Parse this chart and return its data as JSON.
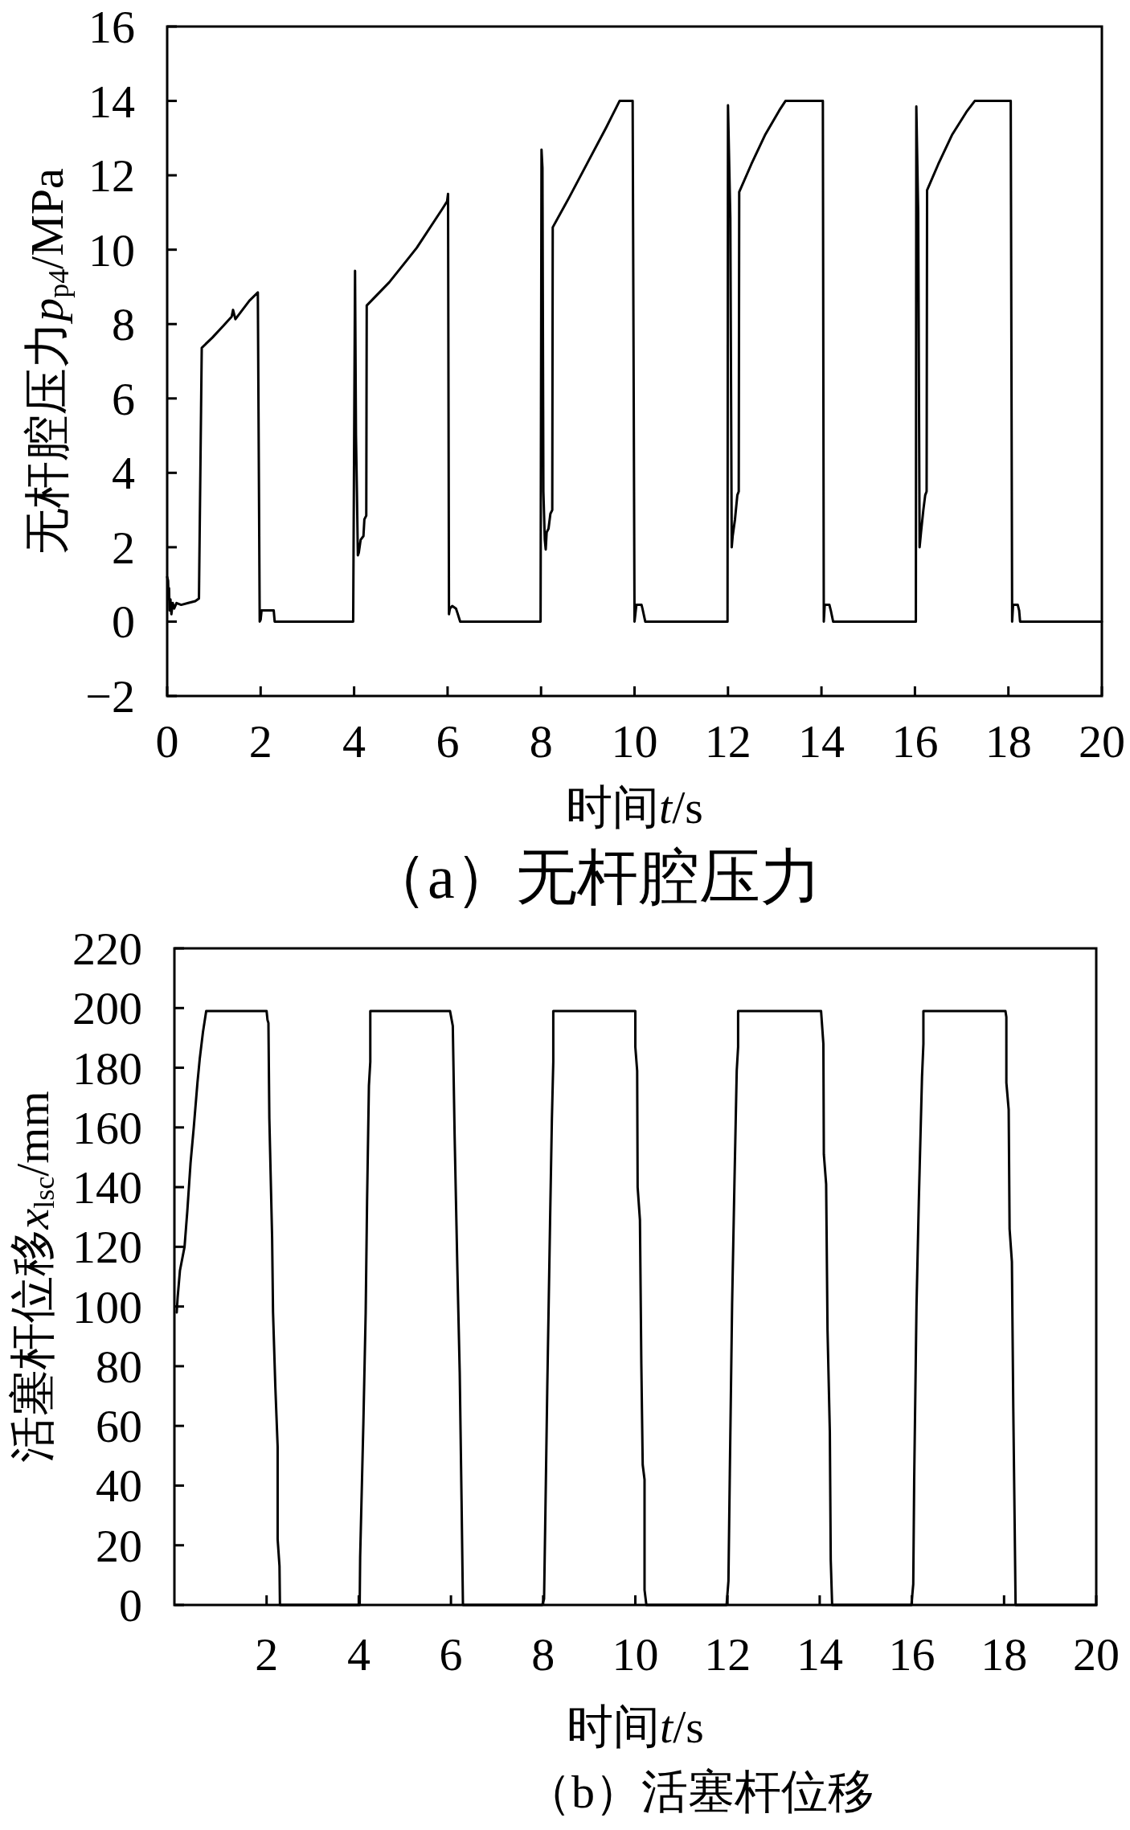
{
  "chart_data": [
    {
      "type": "line",
      "title": "（a）无杆腔压力",
      "xlabel": "时间t/s",
      "ylabel": "无杆腔压力p$_{p4}$/MPa",
      "xlim": [
        0,
        20
      ],
      "ylim": [
        -2,
        16
      ],
      "xticks": [
        0,
        2,
        4,
        6,
        8,
        10,
        12,
        14,
        16,
        18,
        20
      ],
      "yticks": [
        {
          "value": -2,
          "label": "−2"
        },
        0,
        2,
        4,
        6,
        8,
        10,
        12,
        14,
        16
      ],
      "series": [
        {
          "color": "#000000",
          "x": [
            0,
            0.02,
            0.03,
            0.04,
            0.05,
            0.07,
            0.09,
            0.12,
            0.15,
            0.2,
            0.3,
            0.45,
            0.6,
            0.68,
            0.74,
            0.97,
            1.2,
            1.38,
            1.41,
            1.46,
            1.76,
            1.94,
            1.98,
            2.0,
            2.02,
            2.28,
            2.3,
            3.98,
            4.02,
            4.04,
            4.06,
            4.08,
            4.1,
            4.14,
            4.2,
            4.22,
            4.26,
            4.27,
            4.75,
            5.34,
            5.89,
            5.99,
            6.01,
            6.03,
            6.05,
            6.1,
            6.18,
            6.22,
            6.27,
            7.99,
            8.01,
            8.03,
            8.05,
            8.08,
            8.1,
            8.12,
            8.16,
            8.2,
            8.24,
            8.25,
            8.6,
            9.0,
            9.4,
            9.6,
            9.68,
            9.96,
            10.0,
            10.04,
            10.15,
            10.17,
            10.23,
            11.99,
            12.0,
            12.05,
            12.08,
            12.1,
            12.15,
            12.2,
            12.23,
            12.24,
            12.5,
            12.8,
            13.1,
            13.23,
            14.03,
            14.05,
            14.07,
            14.17,
            14.2,
            14.25,
            16.02,
            16.03,
            16.07,
            16.1,
            16.13,
            16.18,
            16.22,
            16.25,
            16.26,
            16.5,
            16.8,
            17.1,
            17.28,
            18.05,
            18.08,
            18.1,
            18.2,
            18.23,
            18.25,
            20
          ],
          "values": [
            1.2,
            1.1,
            0.6,
            0.9,
            0.3,
            0.6,
            0.2,
            0.5,
            0.35,
            0.5,
            0.45,
            0.5,
            0.55,
            0.62,
            7.36,
            7.64,
            7.95,
            8.2,
            8.38,
            8.13,
            8.63,
            8.85,
            0,
            0.05,
            0.3,
            0.3,
            0,
            0,
            9.43,
            5.0,
            3.5,
            1.78,
            1.85,
            2.2,
            2.3,
            2.75,
            2.85,
            8.5,
            9.12,
            10.05,
            11.1,
            11.3,
            11.5,
            0.2,
            0.35,
            0.42,
            0.35,
            0.2,
            0,
            0,
            12.69,
            12.2,
            3.5,
            2.2,
            1.94,
            2.4,
            2.5,
            2.9,
            3.0,
            10.6,
            11.4,
            12.35,
            13.3,
            13.8,
            14.0,
            14.0,
            0,
            0.45,
            0.45,
            0.35,
            0,
            0,
            13.88,
            10.85,
            2.0,
            2.3,
            2.75,
            3.4,
            3.5,
            11.55,
            12.3,
            13.1,
            13.75,
            14.0,
            14.0,
            0,
            0.45,
            0.45,
            0.3,
            0,
            0,
            13.85,
            11.0,
            2.0,
            2.4,
            3.0,
            3.4,
            3.5,
            11.6,
            12.3,
            13.1,
            13.7,
            14.0,
            14.0,
            0,
            0.45,
            0.45,
            0.3,
            0,
            0
          ]
        }
      ]
    },
    {
      "type": "line",
      "title": "（b）活塞杆位移",
      "xlabel": "时间t/s",
      "ylabel": "活塞杆位移x$_{lsc}$/mm",
      "xlim": [
        0,
        20
      ],
      "ylim": [
        0,
        220
      ],
      "xticks": [
        2,
        4,
        6,
        8,
        10,
        12,
        14,
        16,
        18,
        20
      ],
      "yticks": [
        0,
        20,
        40,
        60,
        80,
        100,
        120,
        140,
        160,
        180,
        200,
        220
      ],
      "series": [
        {
          "color": "#000000",
          "x": [
            0.05,
            0.07,
            0.12,
            0.22,
            0.28,
            0.35,
            0.42,
            0.5,
            0.55,
            0.62,
            0.69,
            2.0,
            2.02,
            2.04,
            2.06,
            2.12,
            2.14,
            2.19,
            2.24,
            2.24,
            2.28,
            2.29,
            4.02,
            4.03,
            4.1,
            4.15,
            4.18,
            4.22,
            4.25,
            4.25,
            5.98,
            6.04,
            6.08,
            6.14,
            6.19,
            6.23,
            6.26,
            7.98,
            8.02,
            8.05,
            8.09,
            8.15,
            8.19,
            8.22,
            8.22,
            10.0,
            10.0,
            10.04,
            10.05,
            10.1,
            10.13,
            10.16,
            10.2,
            10.2,
            10.24,
            11.98,
            12.02,
            12.05,
            12.1,
            12.15,
            12.2,
            12.23,
            12.23,
            14.03,
            14.08,
            14.09,
            14.14,
            14.17,
            14.22,
            14.24,
            14.27,
            15.99,
            16.03,
            16.05,
            16.1,
            16.15,
            16.22,
            16.25,
            16.25,
            18.03,
            18.05,
            18.05,
            18.1,
            18.12,
            18.17,
            18.2,
            18.23,
            18.25,
            20
          ],
          "values": [
            98,
            103,
            112,
            120,
            132,
            148,
            160,
            175,
            183,
            192,
            199,
            199,
            196,
            195,
            163,
            123,
            98,
            73,
            53,
            22,
            13,
            0,
            0,
            16,
            61,
            98,
            135,
            174,
            182,
            199,
            199,
            194,
            157,
            112,
            78,
            35,
            0,
            0,
            2,
            32,
            73,
            128,
            163,
            182,
            199,
            199,
            187,
            179,
            140,
            129,
            81,
            47,
            42,
            5,
            0,
            0,
            8,
            44,
            101,
            141,
            179,
            187,
            199,
            199,
            188,
            151,
            141,
            92,
            58,
            15,
            0,
            0,
            7,
            42,
            100,
            135,
            177,
            188,
            199,
            199,
            197,
            175,
            166,
            126,
            115,
            66,
            27,
            0,
            0
          ]
        }
      ]
    }
  ]
}
